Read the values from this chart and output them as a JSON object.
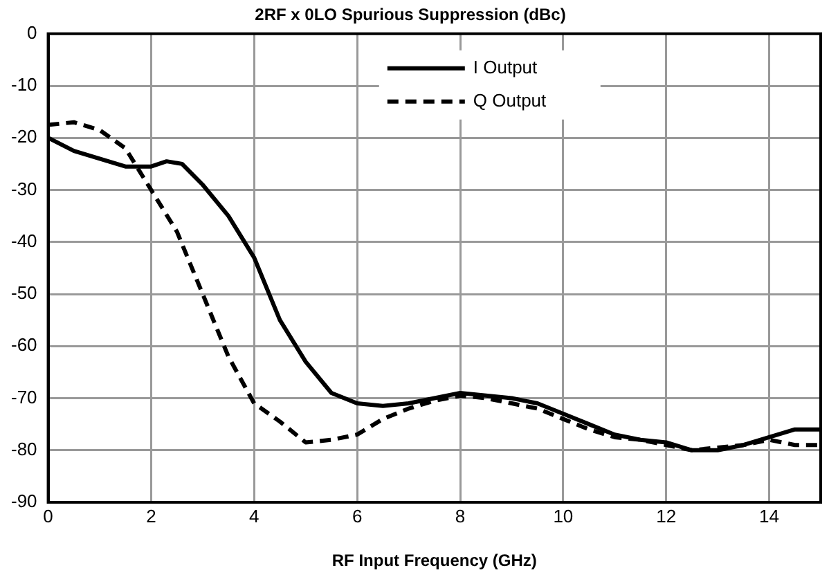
{
  "chart_data": {
    "type": "line",
    "title": "2RF x 0LO Spurious Suppression (dBc)",
    "xlabel": "RF Input Frequency (GHz)",
    "series": [
      {
        "name": "I Output",
        "color": "#000000",
        "line_style": "solid",
        "x": [
          0,
          0.5,
          1,
          1.5,
          2,
          2.3,
          2.6,
          3,
          3.5,
          4,
          4.5,
          5,
          5.5,
          6,
          6.5,
          7,
          7.5,
          8,
          8.5,
          9,
          9.5,
          10,
          10.5,
          11,
          11.5,
          12,
          12.5,
          13,
          13.5,
          14,
          14.5,
          15
        ],
        "values": [
          -20,
          -22.5,
          -24,
          -25.5,
          -25.5,
          -24.5,
          -25,
          -29,
          -35,
          -43,
          -55,
          -63,
          -69,
          -71,
          -71.5,
          -71,
          -70,
          -69,
          -69.5,
          -70,
          -71,
          -73,
          -75,
          -77,
          -78,
          -78.5,
          -80,
          -80,
          -79,
          -77.5,
          -76,
          -76
        ]
      },
      {
        "name": "Q Output",
        "color": "#000000",
        "line_style": "dashed",
        "x": [
          0,
          0.5,
          1,
          1.5,
          2,
          2.5,
          3,
          3.5,
          4,
          4.5,
          5,
          5.5,
          6,
          6.5,
          7,
          7.5,
          8,
          8.5,
          9,
          9.5,
          10,
          10.5,
          11,
          11.5,
          12,
          12.5,
          13,
          13.5,
          14,
          14.5,
          15
        ],
        "values": [
          -17.5,
          -17,
          -18.5,
          -22,
          -30,
          -38,
          -50,
          -62,
          -71,
          -74.5,
          -78.5,
          -78,
          -77,
          -74,
          -72,
          -70.5,
          -69.5,
          -70,
          -71,
          -72,
          -74,
          -76,
          -77.5,
          -78,
          -79,
          -80,
          -79.5,
          -79,
          -78,
          -79,
          -79
        ]
      }
    ],
    "xlim": [
      0,
      15
    ],
    "xticks": [
      0,
      2,
      4,
      6,
      8,
      10,
      12,
      14
    ],
    "ylim": [
      -90,
      0
    ],
    "yticks": [
      0,
      -10,
      -20,
      -30,
      -40,
      -50,
      -60,
      -70,
      -80,
      -90
    ],
    "grid": true,
    "legend": "top",
    "marker": "none"
  }
}
